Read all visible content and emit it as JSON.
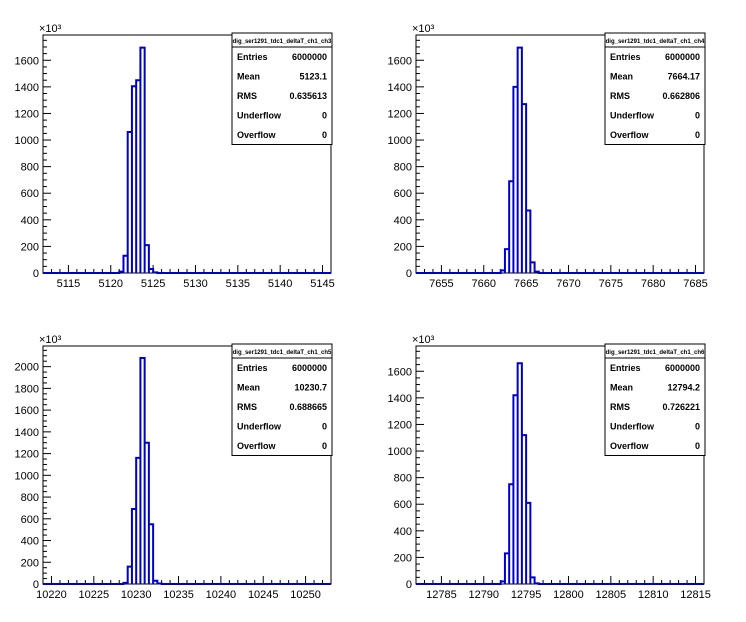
{
  "chart_data": [
    {
      "type": "histogram",
      "title": "dig_ser1291_tdc1_deltaT_ch1_ch3",
      "x_ticks": [
        5115,
        5120,
        5125,
        5130,
        5135,
        5140,
        5145
      ],
      "x_range": [
        5112,
        5146
      ],
      "y_ticks": [
        0,
        200,
        400,
        600,
        800,
        1000,
        1200,
        1400,
        1600
      ],
      "y_range": [
        0,
        1790
      ],
      "y_exponent_label": "×10³",
      "bin_width": 0.5,
      "bins": [
        {
          "x": 5121.0,
          "y": 10
        },
        {
          "x": 5121.5,
          "y": 130
        },
        {
          "x": 5122.0,
          "y": 1060
        },
        {
          "x": 5122.5,
          "y": 1405
        },
        {
          "x": 5123.0,
          "y": 1450
        },
        {
          "x": 5123.5,
          "y": 1695
        },
        {
          "x": 5124.0,
          "y": 210
        },
        {
          "x": 5124.5,
          "y": 30
        },
        {
          "x": 5125.0,
          "y": 5
        }
      ],
      "stats": [
        {
          "label": "Entries",
          "value": "6000000"
        },
        {
          "label": "Mean",
          "value": "5123.1"
        },
        {
          "label": "RMS",
          "value": "0.635613"
        },
        {
          "label": "Underflow",
          "value": "0"
        },
        {
          "label": "Overflow",
          "value": "0"
        }
      ],
      "line_color": "#0000cc"
    },
    {
      "type": "histogram",
      "title": "dig_ser1291_tdc1_deltaT_ch1_ch4",
      "x_ticks": [
        7655,
        7660,
        7665,
        7670,
        7675,
        7680,
        7685
      ],
      "x_range": [
        7652,
        7686
      ],
      "y_ticks": [
        0,
        200,
        400,
        600,
        800,
        1000,
        1200,
        1400,
        1600
      ],
      "y_range": [
        0,
        1790
      ],
      "y_exponent_label": "×10³",
      "bin_width": 0.5,
      "bins": [
        {
          "x": 7662.0,
          "y": 20
        },
        {
          "x": 7662.5,
          "y": 180
        },
        {
          "x": 7663.0,
          "y": 690
        },
        {
          "x": 7663.5,
          "y": 1400
        },
        {
          "x": 7664.0,
          "y": 1695
        },
        {
          "x": 7664.5,
          "y": 1270
        },
        {
          "x": 7665.0,
          "y": 470
        },
        {
          "x": 7665.5,
          "y": 80
        },
        {
          "x": 7666.0,
          "y": 10
        }
      ],
      "stats": [
        {
          "label": "Entries",
          "value": "6000000"
        },
        {
          "label": "Mean",
          "value": "7664.17"
        },
        {
          "label": "RMS",
          "value": "0.662806"
        },
        {
          "label": "Underflow",
          "value": "0"
        },
        {
          "label": "Overflow",
          "value": "0"
        }
      ],
      "line_color": "#0000cc"
    },
    {
      "type": "histogram",
      "title": "dig_ser1291_tdc1_deltaT_ch1_ch5",
      "x_ticks": [
        10220,
        10225,
        10230,
        10235,
        10240,
        10245,
        10250
      ],
      "x_range": [
        10219,
        10253
      ],
      "y_ticks": [
        0,
        200,
        400,
        600,
        800,
        1000,
        1200,
        1400,
        1600,
        1800,
        2000
      ],
      "y_range": [
        0,
        2190
      ],
      "y_exponent_label": "×10³",
      "bin_width": 0.5,
      "bins": [
        {
          "x": 10228.5,
          "y": 10
        },
        {
          "x": 10229.0,
          "y": 160
        },
        {
          "x": 10229.5,
          "y": 690
        },
        {
          "x": 10230.0,
          "y": 1160
        },
        {
          "x": 10230.5,
          "y": 2080
        },
        {
          "x": 10231.0,
          "y": 1300
        },
        {
          "x": 10231.5,
          "y": 550
        },
        {
          "x": 10232.0,
          "y": 30
        },
        {
          "x": 10232.5,
          "y": 5
        }
      ],
      "stats": [
        {
          "label": "Entries",
          "value": "6000000"
        },
        {
          "label": "Mean",
          "value": "10230.7"
        },
        {
          "label": "RMS",
          "value": "0.688665"
        },
        {
          "label": "Underflow",
          "value": "0"
        },
        {
          "label": "Overflow",
          "value": "0"
        }
      ],
      "line_color": "#0000cc"
    },
    {
      "type": "histogram",
      "title": "dig_ser1291_tdc1_deltaT_ch1_ch6",
      "x_ticks": [
        12785,
        12790,
        12795,
        12800,
        12805,
        12810,
        12815
      ],
      "x_range": [
        12782,
        12816
      ],
      "y_ticks": [
        0,
        200,
        400,
        600,
        800,
        1000,
        1200,
        1400,
        1600
      ],
      "y_range": [
        0,
        1790
      ],
      "y_exponent_label": "×10³",
      "bin_width": 0.5,
      "bins": [
        {
          "x": 12792.0,
          "y": 20
        },
        {
          "x": 12792.5,
          "y": 230
        },
        {
          "x": 12793.0,
          "y": 750
        },
        {
          "x": 12793.5,
          "y": 1420
        },
        {
          "x": 12794.0,
          "y": 1660
        },
        {
          "x": 12794.5,
          "y": 1120
        },
        {
          "x": 12795.0,
          "y": 610
        },
        {
          "x": 12795.5,
          "y": 50
        },
        {
          "x": 12796.0,
          "y": 5
        }
      ],
      "stats": [
        {
          "label": "Entries",
          "value": "6000000"
        },
        {
          "label": "Mean",
          "value": "12794.2"
        },
        {
          "label": "RMS",
          "value": "0.726221"
        },
        {
          "label": "Underflow",
          "value": "0"
        },
        {
          "label": "Overflow",
          "value": "0"
        }
      ],
      "line_color": "#0000cc"
    }
  ]
}
